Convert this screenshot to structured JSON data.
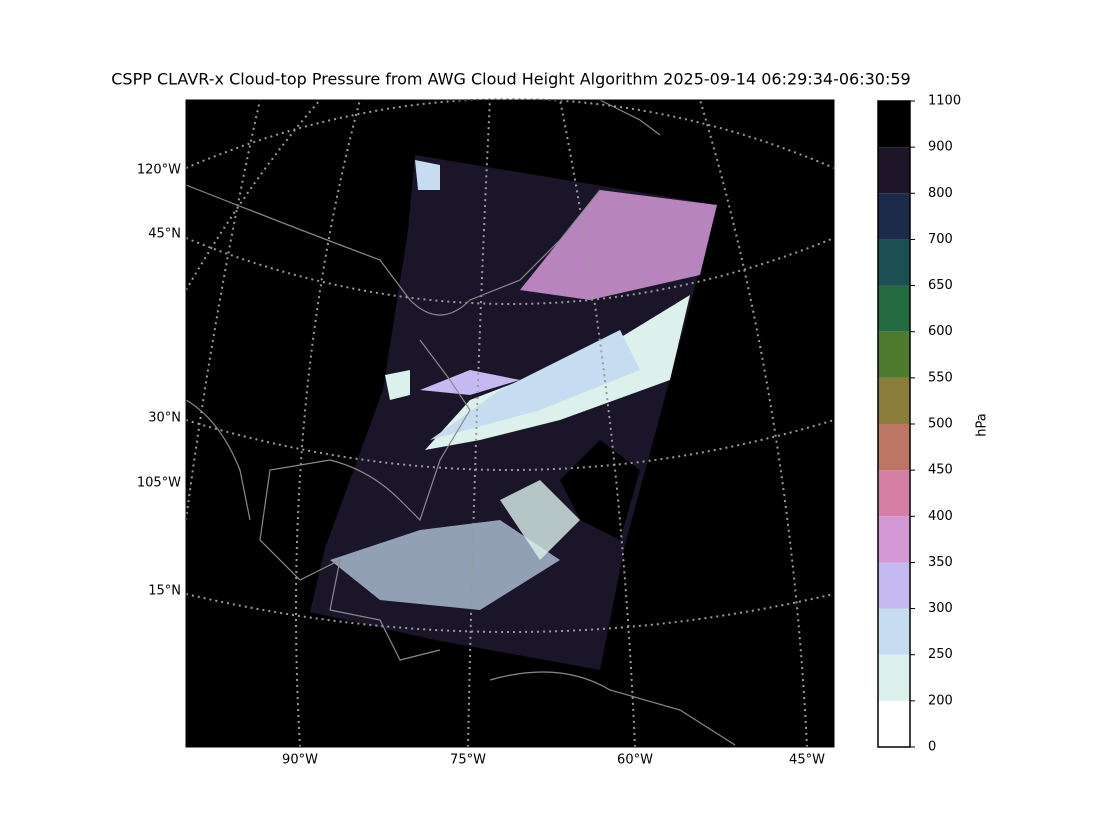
{
  "title": "CSPP CLAVR-x Cloud-top Pressure from AWG Cloud Height Algorithm 2025-09-14 06:29:34-06:30:59",
  "map": {
    "left_labels": [
      "120°W",
      "45°N",
      "30°N",
      "105°W",
      "15°N"
    ],
    "bottom_labels": [
      "90°W",
      "75°W",
      "60°W",
      "45°W"
    ]
  },
  "colorbar": {
    "label": "hPa",
    "ticks": [
      0,
      200,
      250,
      300,
      350,
      400,
      450,
      500,
      550,
      600,
      650,
      700,
      800,
      900,
      1100
    ],
    "colors": [
      "#ffffff",
      "#ddf1ec",
      "#c6dcf1",
      "#c4b9f0",
      "#d598d7",
      "#d57fa5",
      "#bc7663",
      "#8a7c3a",
      "#4f7b31",
      "#256b41",
      "#1b4f51",
      "#1d2b4b",
      "#1e1528",
      "#000000"
    ]
  }
}
